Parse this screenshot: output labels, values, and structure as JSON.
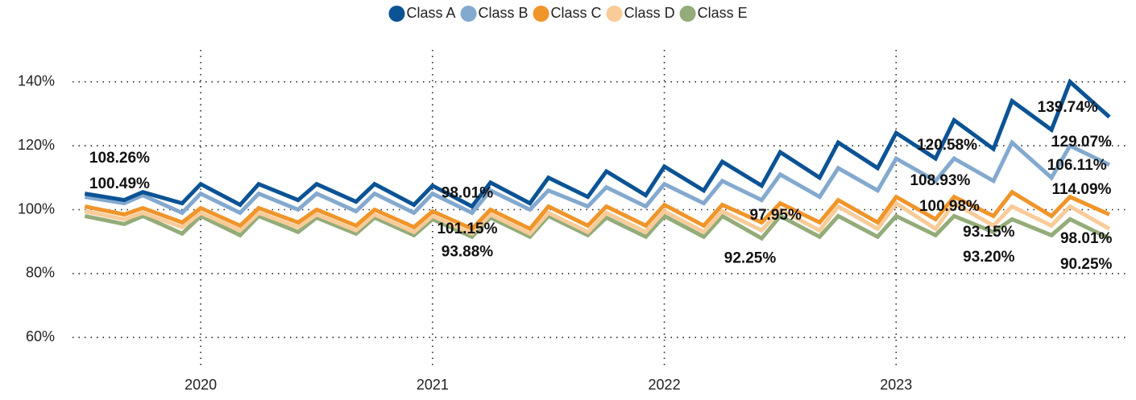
{
  "chart_data": {
    "type": "line",
    "x": [
      2019.5,
      2019.67,
      2019.75,
      2019.92,
      2020.0,
      2020.17,
      2020.25,
      2020.42,
      2020.5,
      2020.67,
      2020.75,
      2020.92,
      2021.0,
      2021.17,
      2021.25,
      2021.42,
      2021.5,
      2021.67,
      2021.75,
      2021.92,
      2022.0,
      2022.17,
      2022.25,
      2022.42,
      2022.5,
      2022.67,
      2022.75,
      2022.92,
      2023.0,
      2023.17,
      2023.25,
      2023.42,
      2023.5,
      2023.67,
      2023.75,
      2023.92
    ],
    "series": [
      {
        "name": "Class A",
        "color": "#0b5394",
        "values": [
          105,
          103,
          105.5,
          102,
          108,
          101.5,
          108,
          103,
          108,
          102.5,
          108,
          101.5,
          107.5,
          101,
          108.5,
          102,
          110,
          104,
          112,
          104.5,
          113.5,
          106,
          115,
          107.5,
          118,
          110,
          121,
          113,
          124,
          116,
          128,
          119,
          134,
          125,
          140,
          129
        ]
      },
      {
        "name": "Class B",
        "color": "#84a9cf",
        "values": [
          104,
          102,
          104.5,
          99,
          105,
          99,
          105,
          100,
          105,
          99.5,
          105,
          99,
          105,
          99,
          106,
          100,
          106,
          101,
          107,
          101,
          108,
          102,
          109,
          103,
          111,
          104,
          113,
          106,
          116,
          109,
          116,
          109,
          121,
          110,
          120,
          114
        ]
      },
      {
        "name": "Class C",
        "color": "#f0952a",
        "values": [
          101,
          98.5,
          100.5,
          96,
          100.5,
          95,
          100.5,
          96,
          100,
          95,
          100,
          94.5,
          99.5,
          94,
          100,
          94,
          101,
          95,
          101,
          95,
          101.5,
          95,
          101.5,
          96,
          102,
          96,
          103,
          96,
          104,
          97,
          104,
          98,
          105.5,
          98,
          104,
          98.5
        ]
      },
      {
        "name": "Class D",
        "color": "#f8cb98",
        "values": [
          99.5,
          97,
          99,
          94.5,
          99,
          93.5,
          99,
          94.5,
          98.5,
          93.5,
          98.5,
          93,
          98,
          92.5,
          98.5,
          92.5,
          99,
          93,
          99,
          93,
          99.5,
          93,
          99.5,
          93.5,
          100,
          93.5,
          101,
          94,
          102,
          94,
          102,
          95,
          101,
          95,
          101,
          94
        ]
      },
      {
        "name": "Class E",
        "color": "#93ac79",
        "values": [
          98,
          95.5,
          98,
          92.5,
          98,
          92,
          98,
          93,
          97.5,
          92.5,
          97.5,
          92,
          97,
          91.5,
          97.5,
          91.5,
          98,
          92,
          97.5,
          91.5,
          98,
          91.5,
          98,
          91,
          98,
          91.5,
          98,
          91.5,
          98,
          92,
          98,
          93,
          97,
          92,
          97,
          91
        ]
      }
    ],
    "xlim": [
      2019.44,
      2024.0
    ],
    "xticks": [
      2020,
      2021,
      2022,
      2023
    ],
    "ylim": [
      50,
      150
    ],
    "yticks": [
      {
        "value": 60,
        "label": "60%"
      },
      {
        "value": 80,
        "label": "80%"
      },
      {
        "value": 100,
        "label": "100%"
      },
      {
        "value": 120,
        "label": "120%"
      },
      {
        "value": 140,
        "label": "140%"
      }
    ],
    "grid": true,
    "legend": "top",
    "annotations": [
      {
        "text": "108.26%",
        "x": 2019.65,
        "y": 116.0
      },
      {
        "text": "100.49%",
        "x": 2019.65,
        "y": 107.9
      },
      {
        "text": "98.01%",
        "x": 2021.15,
        "y": 105.1
      },
      {
        "text": "101.15%",
        "x": 2021.15,
        "y": 93.8
      },
      {
        "text": "93.88%",
        "x": 2021.15,
        "y": 86.7
      },
      {
        "text": "97.95%",
        "x": 2022.48,
        "y": 98.1
      },
      {
        "text": "92.25%",
        "x": 2022.37,
        "y": 84.7
      },
      {
        "text": "120.58%",
        "x": 2023.22,
        "y": 120.0
      },
      {
        "text": "108.93%",
        "x": 2023.19,
        "y": 108.9
      },
      {
        "text": "100.98%",
        "x": 2023.23,
        "y": 100.9
      },
      {
        "text": "93.15%",
        "x": 2023.4,
        "y": 92.8
      },
      {
        "text": "93.20%",
        "x": 2023.4,
        "y": 85.0
      },
      {
        "text": "139.74%",
        "x": 2023.74,
        "y": 131.9
      },
      {
        "text": "129.07%",
        "x": 2023.8,
        "y": 121.0
      },
      {
        "text": "106.11%",
        "x": 2023.78,
        "y": 113.7
      },
      {
        "text": "114.09%",
        "x": 2023.8,
        "y": 106.2
      },
      {
        "text": "98.01%",
        "x": 2023.82,
        "y": 90.8
      },
      {
        "text": "90.25%",
        "x": 2023.82,
        "y": 82.7
      }
    ]
  }
}
